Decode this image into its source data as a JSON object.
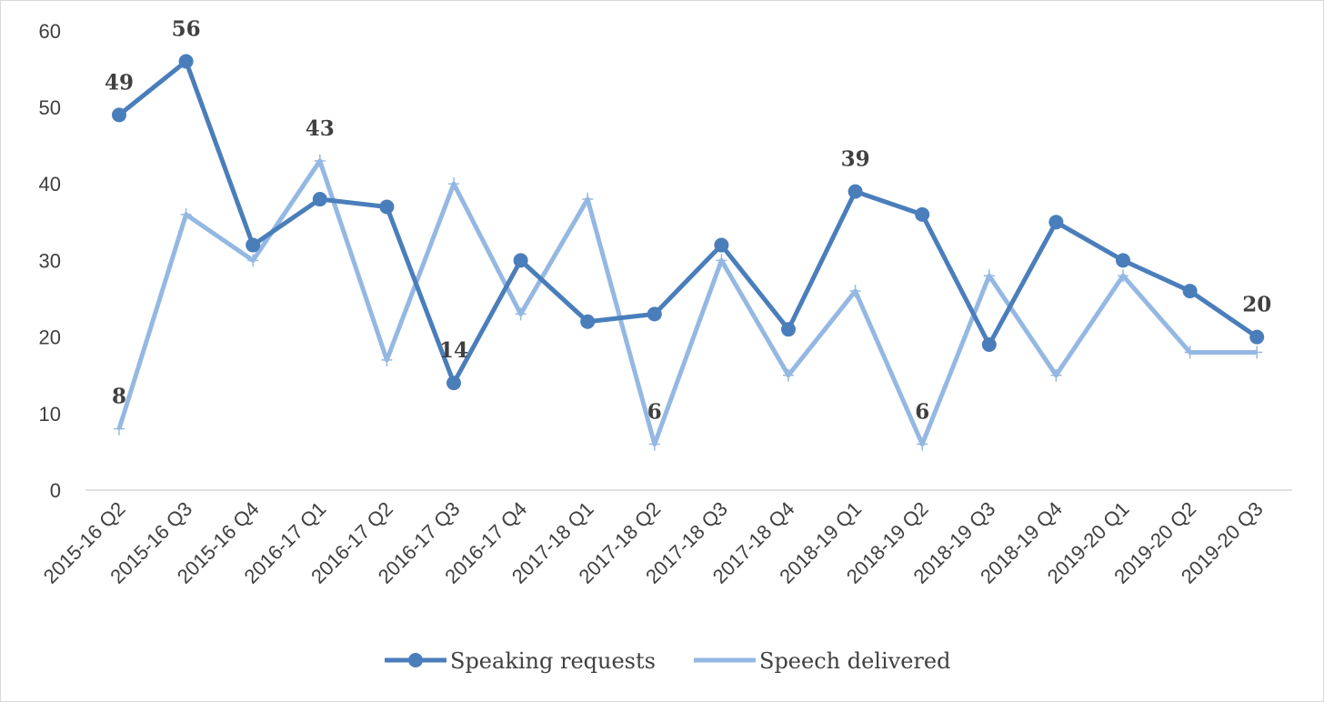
{
  "chart_data": {
    "type": "line",
    "categories": [
      "2015-16 Q2",
      "2015-16 Q3",
      "2015-16 Q4",
      "2016-17 Q1",
      "2016-17 Q2",
      "2016-17 Q3",
      "2016-17 Q4",
      "2017-18 Q1",
      "2017-18 Q2",
      "2017-18 Q3",
      "2017-18 Q4",
      "2018-19 Q1",
      "2018-19 Q2",
      "2018-19 Q3",
      "2018-19 Q4",
      "2019-20 Q1",
      "2019-20 Q2",
      "2019-20 Q3"
    ],
    "series": [
      {
        "name": "Speaking requests",
        "color": "#4A7EBB",
        "marker": "circle",
        "values": [
          49,
          56,
          32,
          38,
          37,
          14,
          30,
          22,
          23,
          32,
          21,
          39,
          36,
          19,
          35,
          30,
          26,
          20
        ],
        "labeled_indices": [
          0,
          1,
          5,
          11,
          17
        ]
      },
      {
        "name": "Speech delivered",
        "color": "#95B8E3",
        "marker": "plus",
        "values": [
          8,
          36,
          30,
          43,
          17,
          40,
          23,
          38,
          6,
          30,
          15,
          26,
          6,
          28,
          15,
          28,
          18,
          18
        ],
        "labeled_indices": [
          0,
          3,
          8,
          12
        ]
      }
    ],
    "yticks": [
      "0",
      "10",
      "20",
      "30",
      "40",
      "50",
      "60"
    ],
    "ylim": [
      0,
      60
    ],
    "grid": false,
    "legend_position": "bottom",
    "title": "",
    "xlabel": "",
    "ylabel": ""
  }
}
